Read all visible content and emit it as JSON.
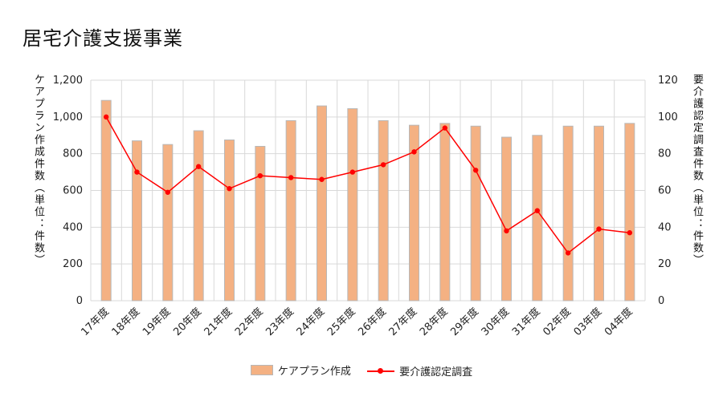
{
  "page": {
    "title": "居宅介護支援事業"
  },
  "chart_data": {
    "type": "bar",
    "categories": [
      "17年度",
      "18年度",
      "19年度",
      "20年度",
      "21年度",
      "22年度",
      "23年度",
      "24年度",
      "25年度",
      "26年度",
      "27年度",
      "28年度",
      "29年度",
      "30年度",
      "31年度",
      "02年度",
      "03年度",
      "04年度"
    ],
    "series": [
      {
        "name": "ケアプラン作成",
        "type": "bar",
        "axis": "left",
        "color": "#f4b183",
        "values": [
          1090,
          870,
          850,
          925,
          875,
          840,
          980,
          1060,
          1045,
          980,
          955,
          965,
          950,
          890,
          900,
          950,
          950,
          965
        ]
      },
      {
        "name": "要介護認定調査",
        "type": "line",
        "axis": "right",
        "color": "#ff0000",
        "values": [
          100,
          70,
          59,
          73,
          61,
          68,
          67,
          66,
          70,
          74,
          81,
          94,
          71,
          38,
          49,
          26,
          39,
          37
        ]
      }
    ],
    "y_left": {
      "label": "ケアプラン作成件数（単位：件数）",
      "min": 0,
      "max": 1200,
      "ticks": [
        "0",
        "200",
        "400",
        "600",
        "800",
        "1,000",
        "1,200"
      ]
    },
    "y_right": {
      "label": "要介護認定調査件数（単位：件数）",
      "min": 0,
      "max": 120,
      "ticks": [
        "0",
        "20",
        "40",
        "60",
        "80",
        "100",
        "120"
      ]
    },
    "grid": true,
    "legend": "bottom"
  }
}
